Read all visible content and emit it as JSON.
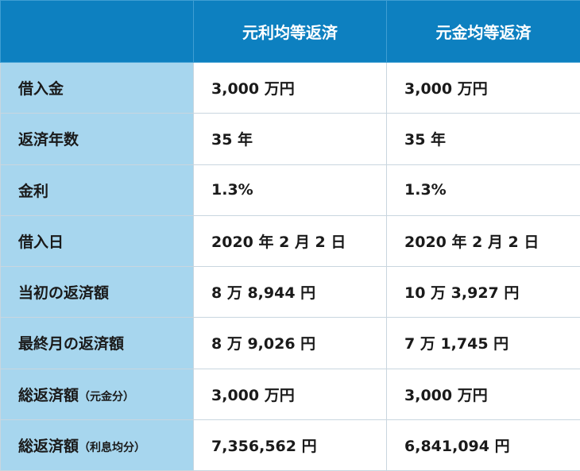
{
  "header": {
    "corner": "",
    "col1": "元利均等返済",
    "col2": "元金均等返済"
  },
  "rows": [
    {
      "label": "借入金",
      "label_sub": "",
      "v1": "3,000 万円",
      "v2": "3,000 万円"
    },
    {
      "label": "返済年数",
      "label_sub": "",
      "v1": "35 年",
      "v2": "35 年"
    },
    {
      "label": "金利",
      "label_sub": "",
      "v1": "1.3%",
      "v2": "1.3%"
    },
    {
      "label": "借入日",
      "label_sub": "",
      "v1": "2020 年 2 月 2 日",
      "v2": "2020 年 2 月 2 日"
    },
    {
      "label": "当初の返済額",
      "label_sub": "",
      "v1": "8 万 8,944 円",
      "v2": "10 万 3,927 円"
    },
    {
      "label": "最終月の返済額",
      "label_sub": "",
      "v1": "8 万 9,026 円",
      "v2": "7 万 1,745 円"
    },
    {
      "label": "総返済額",
      "label_sub": "（元金分）",
      "v1": "3,000 万円",
      "v2": "3,000 万円"
    },
    {
      "label": "総返済額",
      "label_sub": "（利息均分）",
      "v1": "7,356,562 円",
      "v2": "6,841,094 円"
    }
  ],
  "colors": {
    "header_bg": "#0d80c0",
    "label_bg": "#a7d6ee",
    "cell_bg": "#ffffff",
    "border": "#c9d6df"
  }
}
